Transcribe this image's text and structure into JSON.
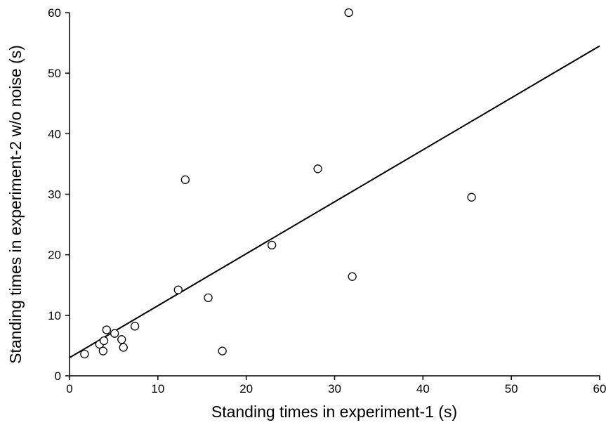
{
  "chart_data": {
    "type": "scatter",
    "xlabel": "Standing times in experiment-1 (s)",
    "ylabel": "Standing times in experiment-2 w/o noise (s)",
    "xlim": [
      0,
      60
    ],
    "ylim": [
      0,
      60
    ],
    "xticks": [
      0,
      10,
      20,
      30,
      40,
      50,
      60
    ],
    "yticks": [
      0,
      10,
      20,
      30,
      40,
      50,
      60
    ],
    "grid": false,
    "series": [
      {
        "marker": "open-circle",
        "points": [
          {
            "x": 1.7,
            "y": 3.6
          },
          {
            "x": 3.4,
            "y": 5.2
          },
          {
            "x": 3.9,
            "y": 5.8
          },
          {
            "x": 3.8,
            "y": 4.1
          },
          {
            "x": 4.2,
            "y": 7.6
          },
          {
            "x": 5.1,
            "y": 7.0
          },
          {
            "x": 5.9,
            "y": 6.0
          },
          {
            "x": 6.1,
            "y": 4.7
          },
          {
            "x": 7.4,
            "y": 8.2
          },
          {
            "x": 12.3,
            "y": 14.2
          },
          {
            "x": 13.1,
            "y": 32.4
          },
          {
            "x": 15.7,
            "y": 12.9
          },
          {
            "x": 17.3,
            "y": 4.1
          },
          {
            "x": 22.9,
            "y": 21.6
          },
          {
            "x": 28.1,
            "y": 34.2
          },
          {
            "x": 31.6,
            "y": 60.0
          },
          {
            "x": 32.0,
            "y": 16.4
          },
          {
            "x": 45.5,
            "y": 29.5
          }
        ]
      }
    ],
    "trendline": {
      "x": [
        0,
        60
      ],
      "y": [
        3.0,
        54.5
      ]
    }
  }
}
